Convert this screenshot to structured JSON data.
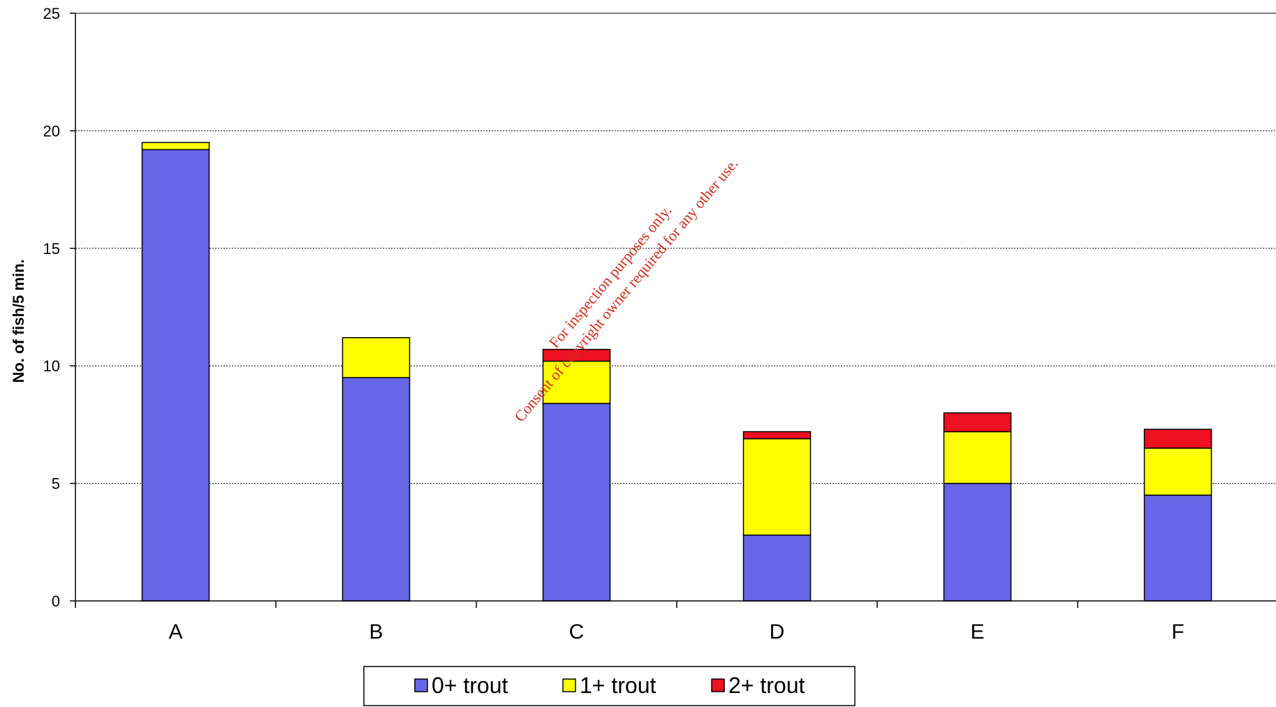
{
  "chart_data": {
    "type": "bar",
    "stacked": true,
    "categories": [
      "A",
      "B",
      "C",
      "D",
      "E",
      "F"
    ],
    "series": [
      {
        "name": "0+ trout",
        "color": "#6666e6",
        "values": [
          19.2,
          9.5,
          8.4,
          2.8,
          5.0,
          4.5
        ]
      },
      {
        "name": "1+ trout",
        "color": "#ffff00",
        "values": [
          0.3,
          1.7,
          1.8,
          4.1,
          2.2,
          2.0
        ]
      },
      {
        "name": "2+ trout",
        "color": "#ee1122",
        "values": [
          0.0,
          0.0,
          0.5,
          0.3,
          0.8,
          0.8
        ]
      }
    ],
    "ylabel": "No. of fish/5 min.",
    "xlabel": "",
    "ylim": [
      0,
      25
    ],
    "yticks": [
      0,
      5,
      10,
      15,
      20,
      25
    ],
    "grid": true,
    "legend_position": "bottom"
  },
  "watermark": {
    "line1": "For inspection purposes only.",
    "line2": "Consent of copyright owner required for any other use."
  }
}
